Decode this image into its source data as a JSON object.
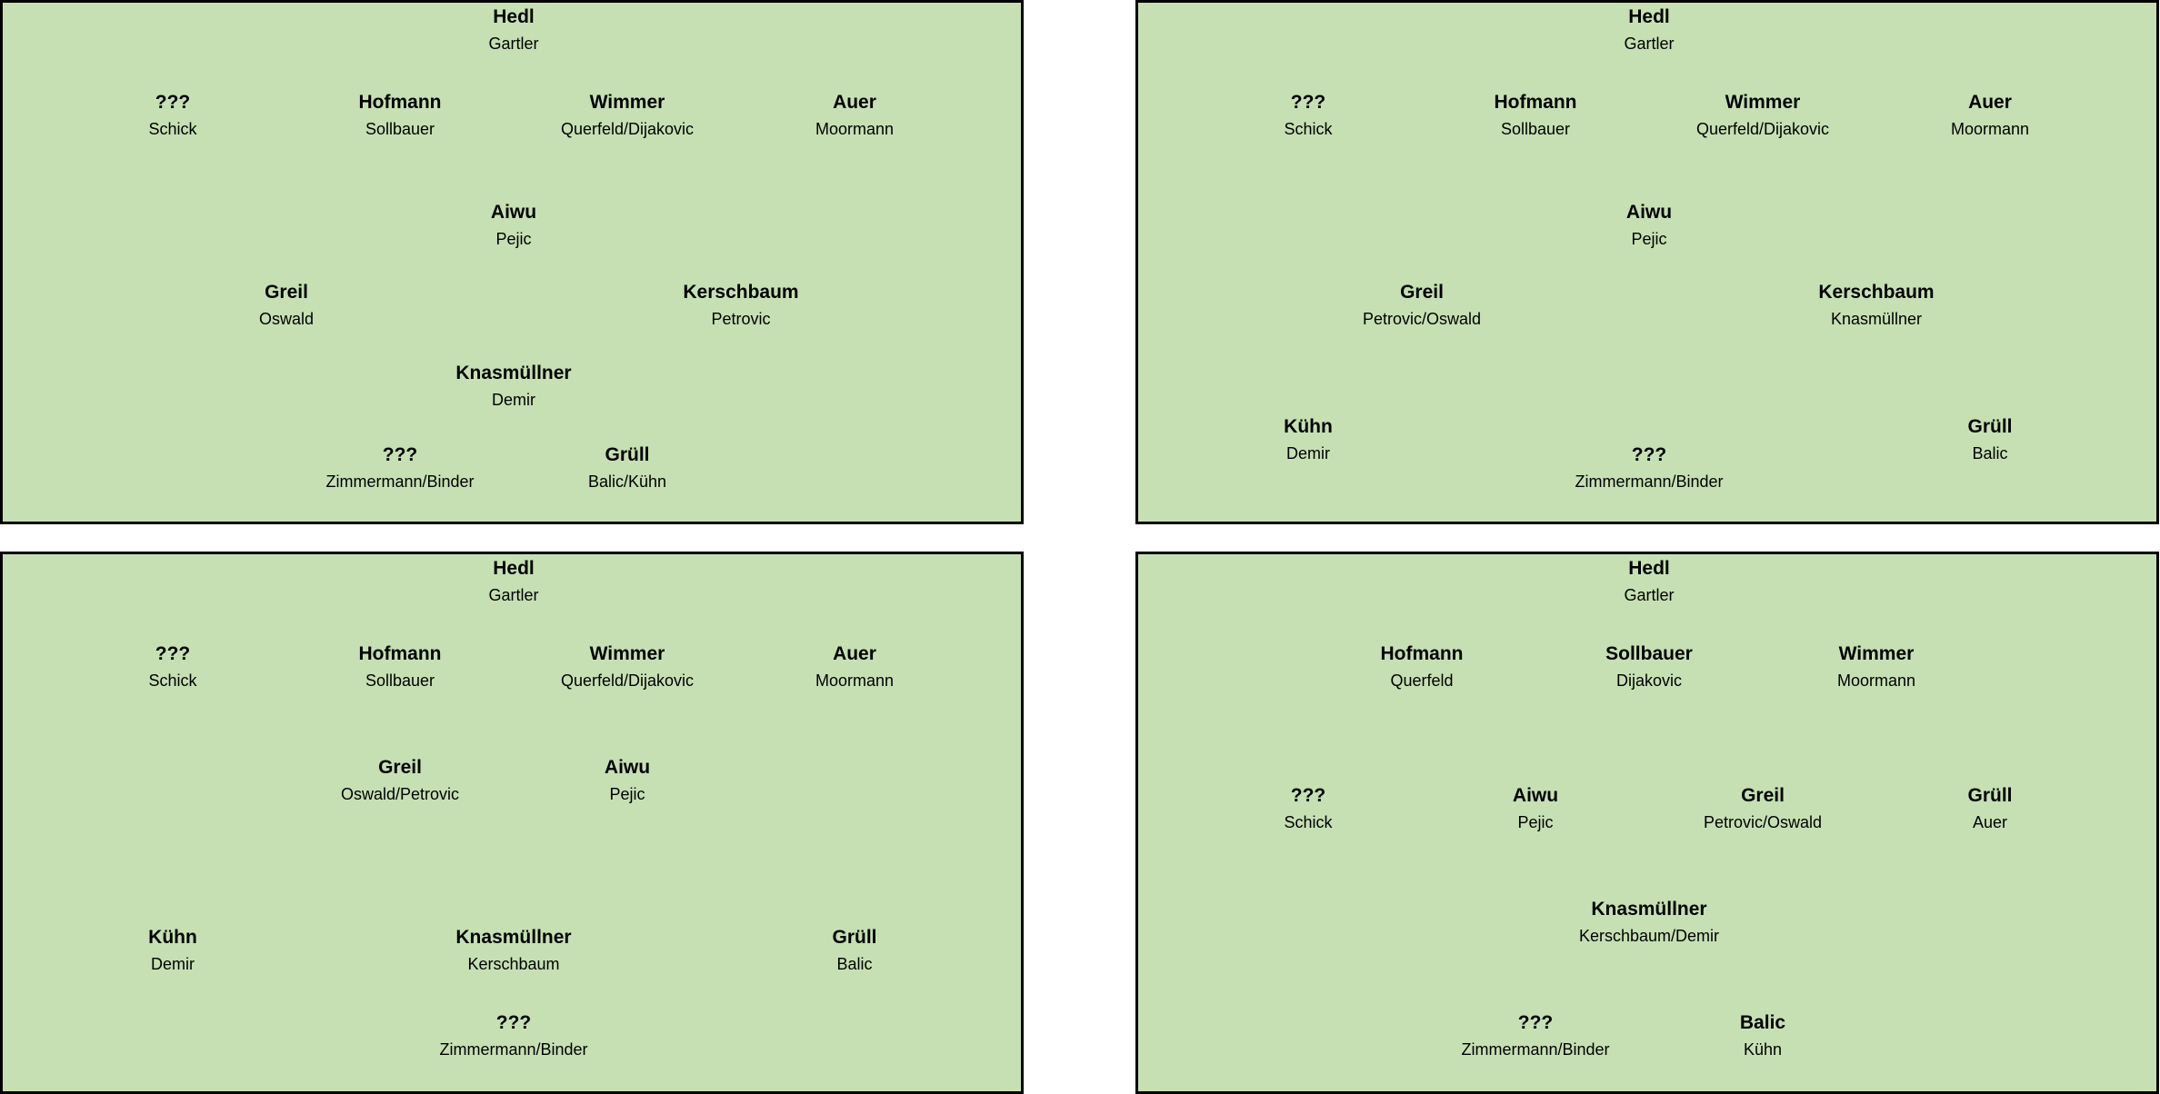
{
  "formations": [
    {
      "positions": [
        {
          "starter": "Hedl",
          "backup": "Gartler"
        },
        {
          "starter": "???",
          "backup": "Schick"
        },
        {
          "starter": "Hofmann",
          "backup": "Sollbauer"
        },
        {
          "starter": "Wimmer",
          "backup": "Querfeld/Dijakovic"
        },
        {
          "starter": "Auer",
          "backup": "Moormann"
        },
        {
          "starter": "Aiwu",
          "backup": "Pejic"
        },
        {
          "starter": "Greil",
          "backup": "Oswald"
        },
        {
          "starter": "Kerschbaum",
          "backup": "Petrovic"
        },
        {
          "starter": "Knasmüllner",
          "backup": "Demir"
        },
        {
          "starter": "???",
          "backup": "Zimmermann/Binder"
        },
        {
          "starter": "Grüll",
          "backup": "Balic/Kühn"
        }
      ]
    },
    {
      "positions": [
        {
          "starter": "Hedl",
          "backup": "Gartler"
        },
        {
          "starter": "???",
          "backup": "Schick"
        },
        {
          "starter": "Hofmann",
          "backup": "Sollbauer"
        },
        {
          "starter": "Wimmer",
          "backup": "Querfeld/Dijakovic"
        },
        {
          "starter": "Auer",
          "backup": "Moormann"
        },
        {
          "starter": "Aiwu",
          "backup": "Pejic"
        },
        {
          "starter": "Greil",
          "backup": "Petrovic/Oswald"
        },
        {
          "starter": "Kerschbaum",
          "backup": "Knasmüllner"
        },
        {
          "starter": "Kühn",
          "backup": "Demir"
        },
        {
          "starter": "Grüll",
          "backup": "Balic"
        },
        {
          "starter": "???",
          "backup": "Zimmermann/Binder"
        }
      ]
    },
    {
      "positions": [
        {
          "starter": "Hedl",
          "backup": "Gartler"
        },
        {
          "starter": "???",
          "backup": "Schick"
        },
        {
          "starter": "Hofmann",
          "backup": "Sollbauer"
        },
        {
          "starter": "Wimmer",
          "backup": "Querfeld/Dijakovic"
        },
        {
          "starter": "Auer",
          "backup": "Moormann"
        },
        {
          "starter": "Greil",
          "backup": "Oswald/Petrovic"
        },
        {
          "starter": "Aiwu",
          "backup": "Pejic"
        },
        {
          "starter": "Kühn",
          "backup": "Demir"
        },
        {
          "starter": "Knasmüllner",
          "backup": "Kerschbaum"
        },
        {
          "starter": "Grüll",
          "backup": "Balic"
        },
        {
          "starter": "???",
          "backup": "Zimmermann/Binder"
        }
      ]
    },
    {
      "positions": [
        {
          "starter": "Hedl",
          "backup": "Gartler"
        },
        {
          "starter": "Hofmann",
          "backup": "Querfeld"
        },
        {
          "starter": "Sollbauer",
          "backup": "Dijakovic"
        },
        {
          "starter": "Wimmer",
          "backup": "Moormann"
        },
        {
          "starter": "???",
          "backup": "Schick"
        },
        {
          "starter": "Aiwu",
          "backup": "Pejic"
        },
        {
          "starter": "Greil",
          "backup": "Petrovic/Oswald"
        },
        {
          "starter": "Grüll",
          "backup": "Auer"
        },
        {
          "starter": "Knasmüllner",
          "backup": "Kerschbaum/Demir"
        },
        {
          "starter": "???",
          "backup": "Zimmermann/Binder"
        },
        {
          "starter": "Balic",
          "backup": "Kühn"
        }
      ]
    }
  ]
}
